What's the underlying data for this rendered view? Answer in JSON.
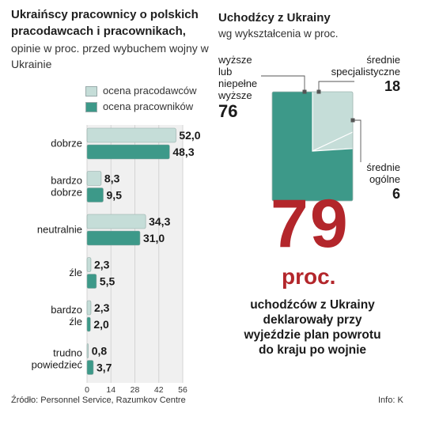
{
  "chart_data": [
    {
      "type": "bar",
      "title": "Ukraińscy pracownicy o polskich pracodawcach i pracownikach,",
      "subtitle": "opinie w proc. przed wybuchem wojny w Ukrainie",
      "categories": [
        [
          "dobrze"
        ],
        [
          "bardzo",
          "dobrze"
        ],
        [
          "neutralnie"
        ],
        [
          "źle"
        ],
        [
          "bardzo",
          "źle"
        ],
        [
          "trudno",
          "powiedzieć"
        ]
      ],
      "series": [
        {
          "name": "ocena pracodawców",
          "values": [
            52.0,
            8.3,
            34.3,
            2.3,
            2.3,
            0.8
          ],
          "labels": [
            "52,0",
            "8,3",
            "34,3",
            "2,3",
            "2,3",
            "0,8"
          ],
          "color": "#c5ddd8"
        },
        {
          "name": "ocena pracowników",
          "values": [
            48.3,
            9.5,
            31.0,
            5.5,
            2.0,
            3.7
          ],
          "labels": [
            "48,3",
            "9,5",
            "31,0",
            "5,5",
            "2,0",
            "3,7"
          ],
          "color": "#3d9989"
        }
      ],
      "xlim": [
        0,
        56
      ],
      "xticks": [
        0,
        14,
        28,
        42,
        56
      ],
      "xtick_labels": [
        "0",
        "14",
        "28",
        "42",
        "56"
      ]
    },
    {
      "type": "pie",
      "title": "Uchodźcy z Ukrainy",
      "subtitle": "wg wykształcenia w proc.",
      "slices": [
        {
          "name": "średnie specjalistyczne",
          "label_lines": [
            "średnie",
            "specjalistyczne"
          ],
          "value": 18,
          "value_label": "18",
          "color": "#c5ddd8"
        },
        {
          "name": "średnie ogólne",
          "label_lines": [
            "średnie",
            "ogólne"
          ],
          "value": 6,
          "value_label": "6",
          "color": "#c5ddd8"
        },
        {
          "name": "wyższe lub niepełne wyższe",
          "label_lines": [
            "wyższe",
            "lub",
            "niepełne",
            "wyższe"
          ],
          "value": 76,
          "value_label": "76",
          "color": "#3d9989"
        }
      ]
    }
  ],
  "highlight": {
    "number": "79",
    "unit": "proc.",
    "description": "uchodźców z Ukrainy deklarowały przy wyjeździe plan powrotu do kraju po wojnie"
  },
  "footer": {
    "source": "Źródło: Personnel Service, Razumkov Centre",
    "credit": "Info: K"
  }
}
